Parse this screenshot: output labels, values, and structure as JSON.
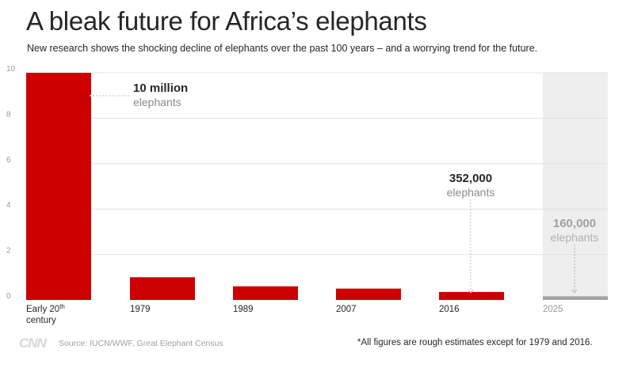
{
  "header": {
    "title": "A bleak future for Africa’s elephants",
    "subtitle": "New research shows the shocking decline of elephants over the past 100 years – and a worrying trend for the future."
  },
  "chart_data": {
    "type": "bar",
    "categories": [
      "Early 20th century",
      "1979",
      "1989",
      "2007",
      "2016",
      "2025"
    ],
    "category_lines": [
      [
        "Early 20th",
        "century"
      ],
      [
        "1979"
      ],
      [
        "1989"
      ],
      [
        "2007"
      ],
      [
        "2016"
      ],
      [
        "2025"
      ]
    ],
    "values": [
      10,
      1.0,
      0.6,
      0.5,
      0.352,
      0.16
    ],
    "unit": "million elephants",
    "projected": [
      false,
      false,
      false,
      false,
      false,
      true
    ],
    "ylim": [
      0,
      10
    ],
    "yticks": [
      "0",
      "2",
      "4",
      "6",
      "8",
      "10"
    ],
    "grid": true,
    "colors": {
      "bar": "#cc0000",
      "projected_bar": "#a3a3a3",
      "projected_band": "#eeeeee",
      "grid": "#e0e0e0"
    },
    "annotations": [
      {
        "category": "Early 20th century",
        "value_text": "10 million",
        "unit_text": "elephants"
      },
      {
        "category": "2016",
        "value_text": "352,000",
        "unit_text": "elephants"
      },
      {
        "category": "2025",
        "value_text": "160,000",
        "unit_text": "elephants"
      }
    ]
  },
  "footer": {
    "logo": "CNN",
    "source": "Source: IUCN/WWF, Great Elephant Census",
    "note": "*All figures are rough estimates except for 1979 and 2016."
  }
}
